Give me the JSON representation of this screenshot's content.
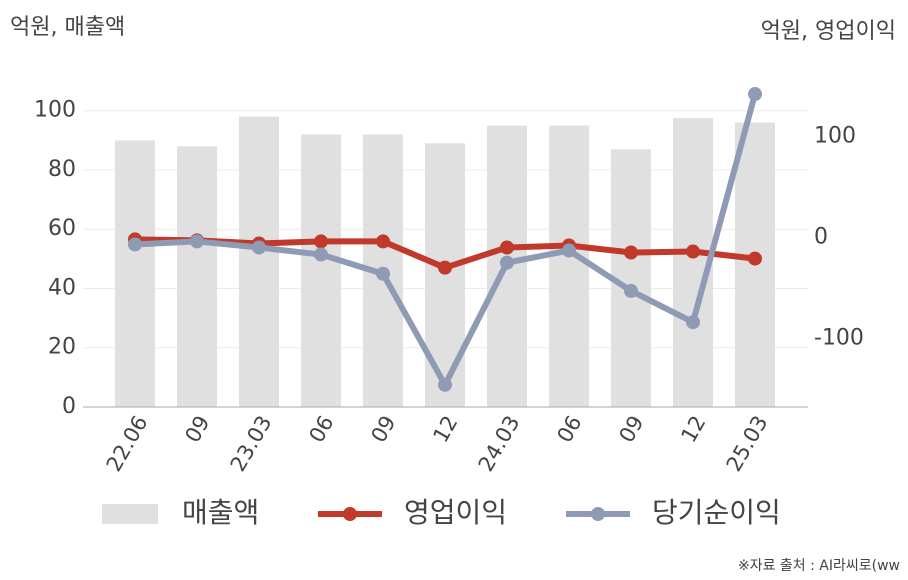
{
  "chart_data": {
    "type": "bar-line",
    "y_label": "억원, 매출액",
    "y2_label": "억원, 영업이익",
    "source": "※자료 출처 : AI라씨로(ww",
    "categories": [
      "22.06",
      "09",
      "23.03",
      "06",
      "09",
      "12",
      "24.03",
      "06",
      "09",
      "12",
      "25.03"
    ],
    "series": [
      {
        "name": "매출액",
        "kind": "bar",
        "color": "#e0e0e0",
        "values": [
          90,
          88,
          98,
          92,
          92,
          89,
          95,
          95,
          87,
          97.5,
          96
        ]
      },
      {
        "name": "영업이익",
        "kind": "line",
        "axis": "y2",
        "color": "#c0392b",
        "values": [
          -2,
          -3,
          -6,
          -4,
          -4,
          -30,
          -10,
          -8,
          -15,
          -14,
          -21
        ]
      },
      {
        "name": "당기순이익",
        "kind": "line",
        "axis": "y2",
        "color": "#8f9bb5",
        "values": [
          -7,
          -4,
          -10,
          -17,
          -36,
          -146,
          -25,
          -13,
          -53,
          -84,
          142
        ]
      }
    ],
    "ylim": [
      0,
      107
    ],
    "yticks": [
      0,
      20,
      40,
      60,
      80,
      100
    ],
    "y2lim": [
      -168,
      146
    ],
    "y2ticks": [
      -100,
      0,
      100
    ],
    "grid": true
  }
}
